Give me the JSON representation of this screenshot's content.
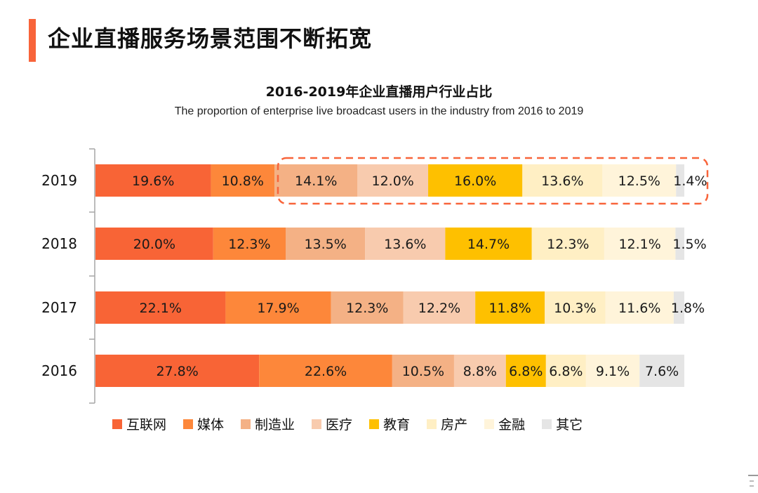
{
  "page": {
    "title": "企业直播服务场景范围不断拓宽",
    "accent_color": "#f8643a"
  },
  "chart_data": {
    "type": "bar",
    "orientation": "horizontal",
    "stacked": "percent",
    "title": "2016-2019年企业直播用户行业占比",
    "subtitle": "The proportion of enterprise live broadcast users in the industry from 2016 to 2019",
    "xlabel": "",
    "ylabel": "",
    "grid": false,
    "legend_position": "bottom",
    "categories": [
      "2019",
      "2018",
      "2017",
      "2016"
    ],
    "series": [
      {
        "name": "互联网",
        "color": "#f86436",
        "values": [
          19.6,
          20.0,
          22.1,
          27.8
        ]
      },
      {
        "name": "媒体",
        "color": "#fd873a",
        "values": [
          10.8,
          12.3,
          17.9,
          22.6
        ]
      },
      {
        "name": "制造业",
        "color": "#f4b185",
        "values": [
          14.1,
          13.5,
          12.3,
          10.5
        ]
      },
      {
        "name": "医疗",
        "color": "#f8cbae",
        "values": [
          12.0,
          13.6,
          12.2,
          8.8
        ]
      },
      {
        "name": "教育",
        "color": "#fec000",
        "values": [
          16.0,
          14.7,
          11.8,
          6.8
        ]
      },
      {
        "name": "房产",
        "color": "#ffefc4",
        "values": [
          13.6,
          12.3,
          10.3,
          6.8
        ]
      },
      {
        "name": "金融",
        "color": "#fff4da",
        "values": [
          12.5,
          12.1,
          11.6,
          9.1
        ]
      },
      {
        "name": "其它",
        "color": "#e5e5e5",
        "values": [
          1.4,
          1.5,
          1.8,
          7.6
        ]
      }
    ],
    "labels": [
      [
        "19.6%",
        "10.8%",
        "14.1%",
        "12.0%",
        "16.0%",
        "13.6%",
        "12.5%",
        "1.4%"
      ],
      [
        "20.0%",
        "12.3%",
        "13.5%",
        "13.6%",
        "14.7%",
        "12.3%",
        "12.1%",
        "1.5%"
      ],
      [
        "22.1%",
        "17.9%",
        "12.3%",
        "12.2%",
        "11.8%",
        "10.3%",
        "11.6%",
        "1.8%"
      ],
      [
        "27.8%",
        "22.6%",
        "10.5%",
        "8.8%",
        "6.8%",
        "6.8%",
        "9.1%",
        "7.6%"
      ]
    ],
    "annotation": {
      "type": "dashed-rounded-box",
      "highlights": "2019 制造业 through 其它",
      "color": "#f8643a"
    }
  }
}
